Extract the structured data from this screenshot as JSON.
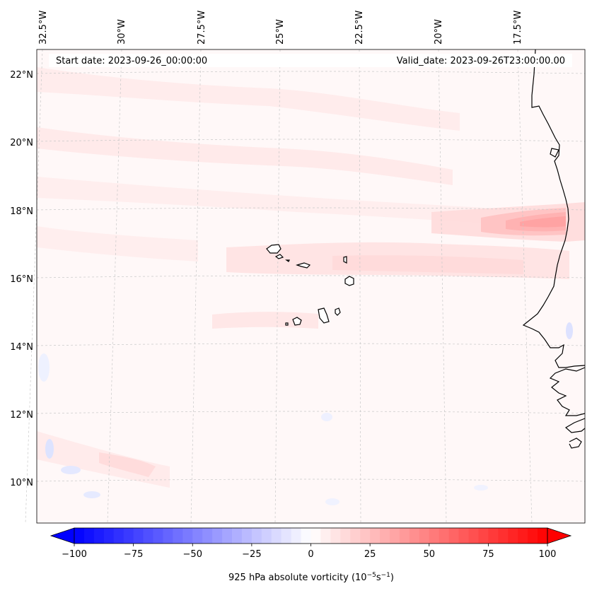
{
  "map": {
    "start_label": "Start date: 2023-09-26_00:00:00",
    "valid_label": "Valid_date: 2023-09-26T23:00:00.00",
    "lon_labels": [
      "32.5°W",
      "30°W",
      "27.5°W",
      "25°W",
      "22.5°W",
      "20°W",
      "17.5°W"
    ],
    "lat_labels": [
      "22°N",
      "20°N",
      "18°N",
      "16°N",
      "14°N",
      "12°N",
      "10°N"
    ],
    "islands": [
      "Santo Antão",
      "São Vicente",
      "Santa Luzia",
      "São Nicolau",
      "Sal",
      "Boa Vista",
      "Maio",
      "Santiago",
      "Fogo",
      "Brava"
    ]
  },
  "colorbar": {
    "label": "925 hPa absolute vorticity (10",
    "label_exp1": "−5",
    "label_unit": "s",
    "label_exp2": "−1",
    "label_close": ")",
    "min": -100,
    "max": 100,
    "levels": 48,
    "ticks": [
      "−100",
      "−75",
      "−50",
      "−25",
      "0",
      "25",
      "50",
      "75",
      "100"
    ],
    "colors": {
      "negative": "#0000ff",
      "zero": "#ffffff",
      "positive": "#ff0000"
    }
  }
}
